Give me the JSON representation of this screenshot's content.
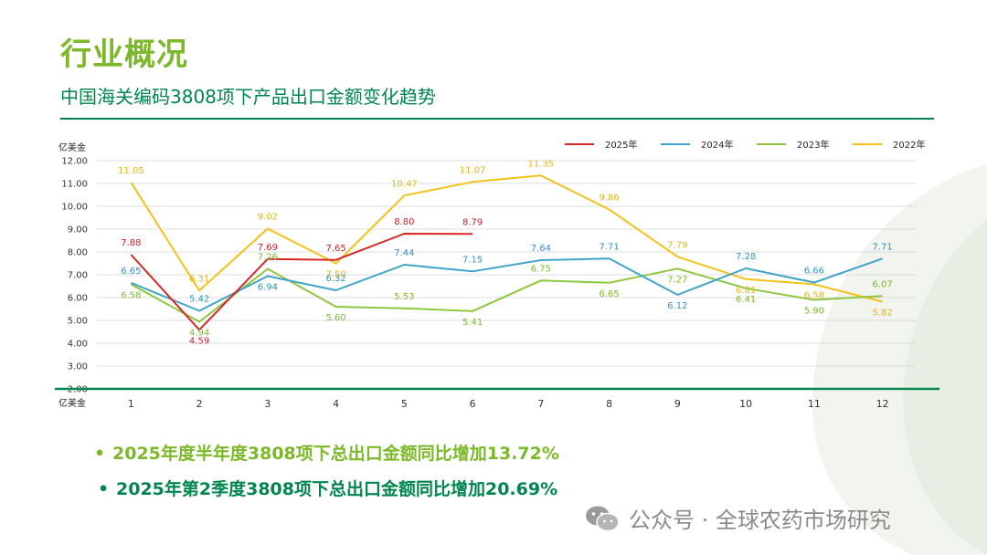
{
  "title": "行业概况",
  "subtitle": "中国海关编码3808项下产品出口金额变化趋势",
  "bullets": [
    {
      "dot": "•",
      "text": "2025年度半年度3808项下总出口金额同比增加13.72%"
    },
    {
      "dot": "•",
      "text": "2025年第2季度3808项下总出口金额同比增加20.69%"
    }
  ],
  "watermark": {
    "icon": "wechat-icon",
    "text": "公众号 · 全球农药市场研究"
  },
  "colors": {
    "title": "#7cb928",
    "accent": "#00864e"
  },
  "chart_data": {
    "type": "line",
    "ylabel": "亿美金",
    "xlabel": "亿美金",
    "ylim": [
      2,
      12
    ],
    "yticks": [
      "2.00",
      "3.00",
      "4.00",
      "5.00",
      "6.00",
      "7.00",
      "8.00",
      "9.00",
      "10.00",
      "11.00",
      "12.00"
    ],
    "x": [
      "1",
      "2",
      "3",
      "4",
      "5",
      "6",
      "7",
      "8",
      "9",
      "10",
      "11",
      "12"
    ],
    "grid": true,
    "legend": "top-right",
    "series": [
      {
        "name": "2025年",
        "color": "#d62728",
        "values": [
          7.88,
          4.59,
          7.69,
          7.65,
          8.8,
          8.79,
          null,
          null,
          null,
          null,
          null,
          null
        ],
        "labels": [
          "7.88",
          "4.59",
          "7.69",
          "7.65",
          "8.80",
          "8.79",
          null,
          null,
          null,
          null,
          null,
          null
        ]
      },
      {
        "name": "2024年",
        "color": "#3fa4c9",
        "values": [
          6.65,
          5.42,
          6.94,
          6.32,
          7.44,
          7.15,
          7.64,
          7.71,
          6.12,
          7.28,
          6.66,
          7.71
        ],
        "labels": [
          "6.65",
          "5.42",
          "6.94",
          "6.32",
          "7.44",
          "7.15",
          "7.64",
          "7.71",
          "6.12",
          "7.28",
          "6.66",
          "7.71"
        ]
      },
      {
        "name": "2023年",
        "color": "#8dc63f",
        "values": [
          6.58,
          4.94,
          7.26,
          5.6,
          5.53,
          5.41,
          6.75,
          6.65,
          7.27,
          6.41,
          5.9,
          6.07
        ],
        "labels": [
          "6.58",
          "4.94",
          "7.26",
          "5.60",
          "5.53",
          "5.41",
          "6.75",
          "6.65",
          "7.27",
          "6.41",
          "5.90",
          "6.07"
        ]
      },
      {
        "name": "2022年",
        "color": "#f2c21b",
        "values": [
          11.05,
          6.31,
          9.02,
          7.5,
          10.47,
          11.07,
          11.35,
          9.86,
          7.79,
          6.81,
          6.58,
          5.82
        ],
        "labels": [
          "11.05",
          "6.31",
          "9.02",
          "7.50",
          "10.47",
          "11.07",
          "11.35",
          "9.86",
          "7.79",
          "6.81",
          "6.58",
          "5.82"
        ]
      }
    ]
  }
}
